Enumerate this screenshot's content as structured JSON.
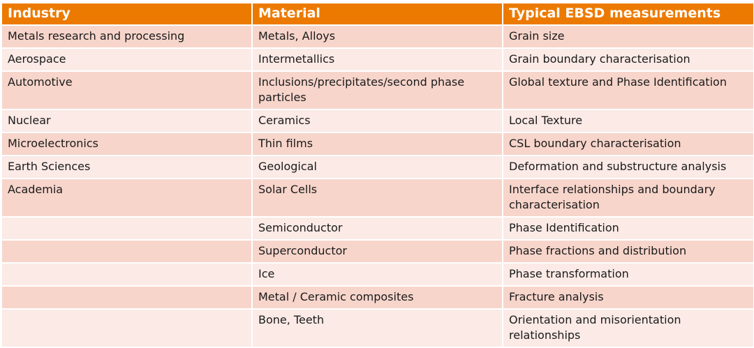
{
  "table": {
    "headers": [
      "Industry",
      "Material",
      "Typical EBSD measurements"
    ],
    "rows": [
      [
        "Metals research and processing",
        "Metals, Alloys",
        "Grain size"
      ],
      [
        "Aerospace",
        "Intermetallics",
        "Grain boundary characterisation"
      ],
      [
        "Automotive",
        "Inclusions/precipitates/second phase particles",
        "Global texture and Phase Identification"
      ],
      [
        "Nuclear",
        "Ceramics",
        "Local Texture"
      ],
      [
        "Microelectronics",
        "Thin films",
        "CSL boundary characterisation"
      ],
      [
        "Earth Sciences",
        "Geological",
        "Deformation and substructure analysis"
      ],
      [
        "Academia",
        "Solar Cells",
        "Interface relationships and boundary characterisation"
      ],
      [
        "",
        "Semiconductor",
        "Phase Identification"
      ],
      [
        "",
        "Superconductor",
        "Phase fractions and distribution"
      ],
      [
        "",
        "Ice",
        "Phase transformation"
      ],
      [
        "",
        "Metal / Ceramic composites",
        "Fracture analysis"
      ],
      [
        "",
        "Bone, Teeth",
        "Orientation and misorientation relationships"
      ]
    ]
  },
  "colors": {
    "header": "#EC7A00",
    "row_dark": "#F7D5CB",
    "row_light": "#FBEAE6"
  }
}
